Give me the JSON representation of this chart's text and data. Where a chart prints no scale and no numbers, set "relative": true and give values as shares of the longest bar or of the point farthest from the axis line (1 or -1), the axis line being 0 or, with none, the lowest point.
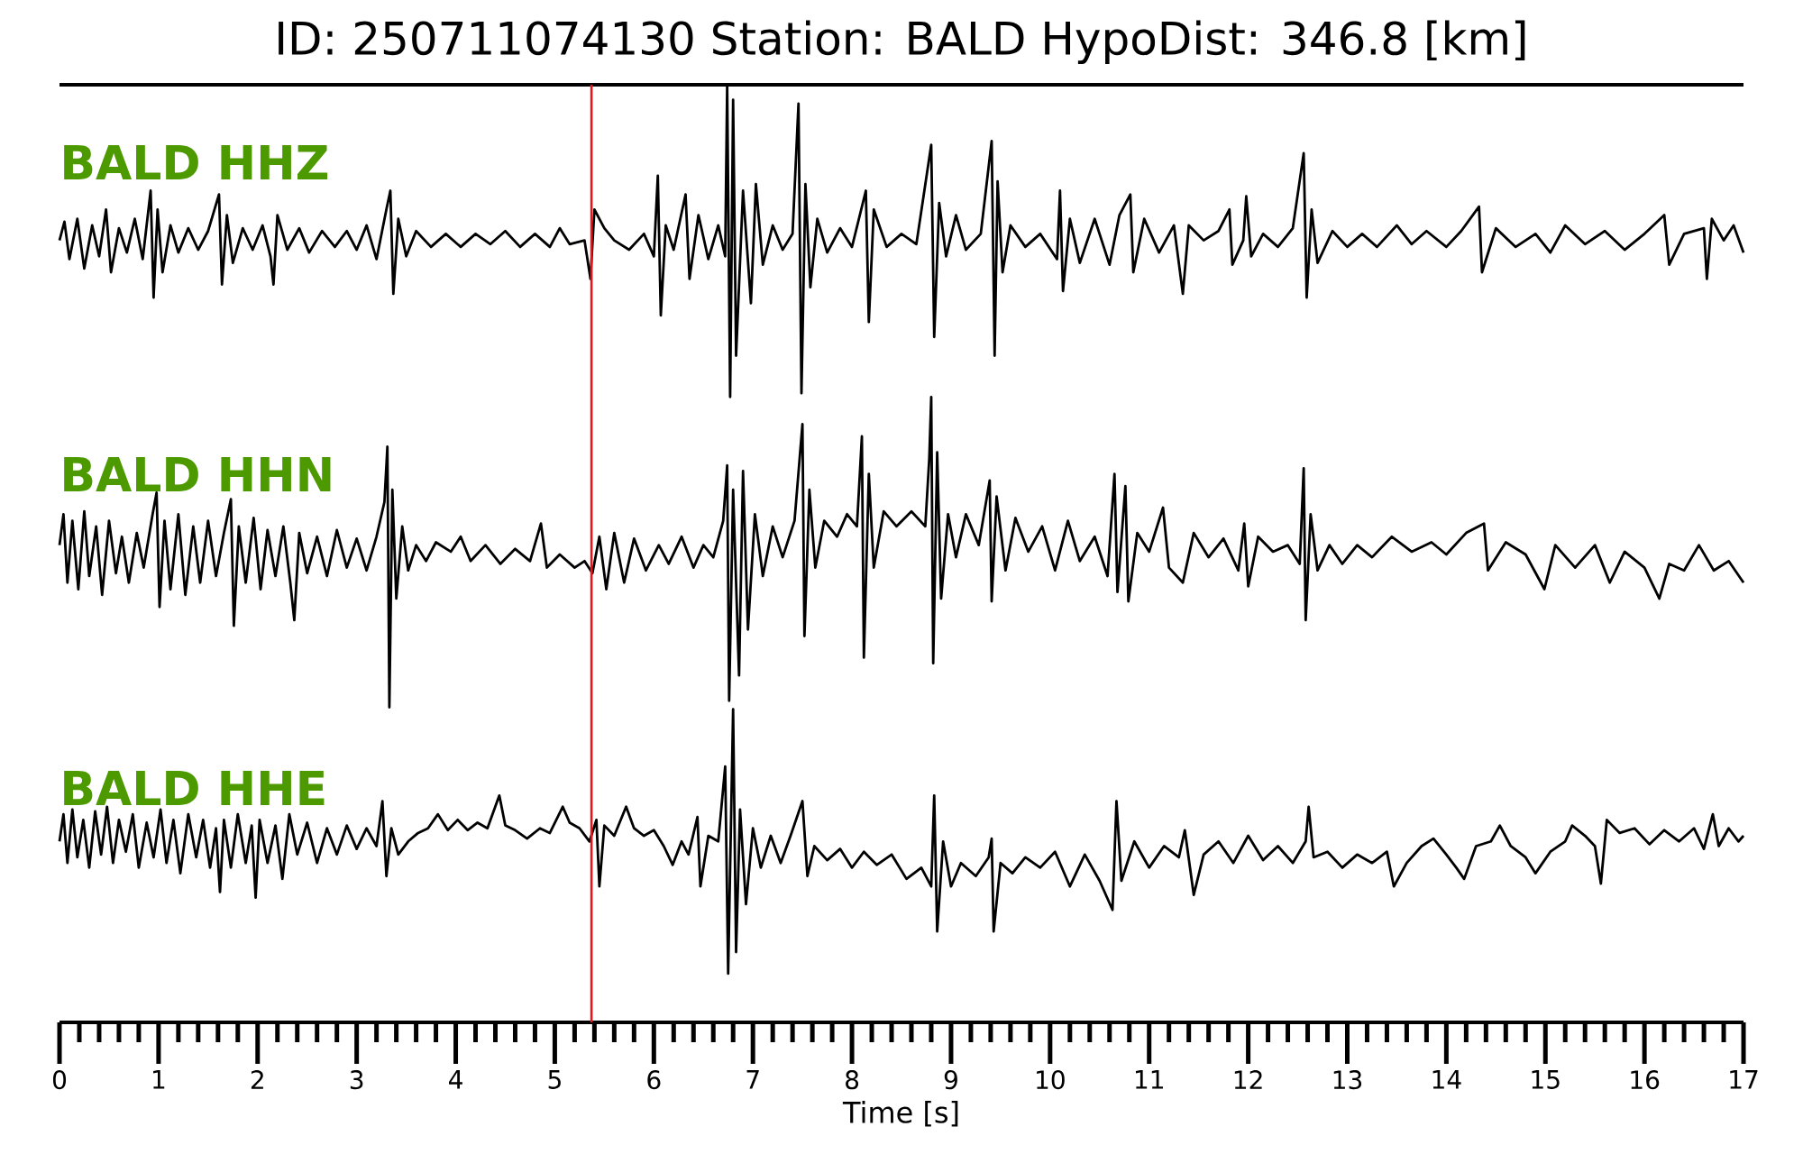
{
  "chart_data": {
    "type": "line",
    "title": "ID: 250711074130   Station: BALD   HypoDist:   346.8 [km]",
    "relative": true,
    "xlim": [
      0,
      17
    ],
    "xlabel": "Time [s]",
    "xticks": [
      0,
      {
        "value": 0.2,
        "label": null
      },
      {
        "value": 0.4,
        "label": null
      },
      {
        "value": 0.6,
        "label": null
      },
      {
        "value": 0.8,
        "label": null
      },
      1,
      {
        "value": 1.2,
        "label": null
      },
      {
        "value": 1.4,
        "label": null
      },
      {
        "value": 1.6,
        "label": null
      },
      {
        "value": 1.8,
        "label": null
      },
      2,
      {
        "value": 2.2,
        "label": null
      },
      {
        "value": 2.4,
        "label": null
      },
      {
        "value": 2.6,
        "label": null
      },
      {
        "value": 2.8,
        "label": null
      },
      3,
      {
        "value": 3.2,
        "label": null
      },
      {
        "value": 3.4,
        "label": null
      },
      {
        "value": 3.6,
        "label": null
      },
      {
        "value": 3.8,
        "label": null
      },
      4,
      {
        "value": 4.2,
        "label": null
      },
      {
        "value": 4.4,
        "label": null
      },
      {
        "value": 4.6,
        "label": null
      },
      {
        "value": 4.8,
        "label": null
      },
      5,
      {
        "value": 5.2,
        "label": null
      },
      {
        "value": 5.4,
        "label": null
      },
      {
        "value": 5.6,
        "label": null
      },
      {
        "value": 5.8,
        "label": null
      },
      6,
      {
        "value": 6.2,
        "label": null
      },
      {
        "value": 6.4,
        "label": null
      },
      {
        "value": 6.6,
        "label": null
      },
      {
        "value": 6.8,
        "label": null
      },
      7,
      {
        "value": 7.2,
        "label": null
      },
      {
        "value": 7.4,
        "label": null
      },
      {
        "value": 7.6,
        "label": null
      },
      {
        "value": 7.8,
        "label": null
      },
      8,
      {
        "value": 8.2,
        "label": null
      },
      {
        "value": 8.4,
        "label": null
      },
      {
        "value": 8.6,
        "label": null
      },
      {
        "value": 8.8,
        "label": null
      },
      9,
      {
        "value": 9.2,
        "label": null
      },
      {
        "value": 9.4,
        "label": null
      },
      {
        "value": 9.6,
        "label": null
      },
      {
        "value": 9.8,
        "label": null
      },
      10,
      {
        "value": 10.2,
        "label": null
      },
      {
        "value": 10.4,
        "label": null
      },
      {
        "value": 10.6,
        "label": null
      },
      {
        "value": 10.8,
        "label": null
      },
      11,
      {
        "value": 11.2,
        "label": null
      },
      {
        "value": 11.4,
        "label": null
      },
      {
        "value": 11.6,
        "label": null
      },
      {
        "value": 11.8,
        "label": null
      },
      12,
      {
        "value": 12.2,
        "label": null
      },
      {
        "value": 12.4,
        "label": null
      },
      {
        "value": 12.6,
        "label": null
      },
      {
        "value": 12.8,
        "label": null
      },
      13,
      {
        "value": 13.2,
        "label": null
      },
      {
        "value": 13.4,
        "label": null
      },
      {
        "value": 13.6,
        "label": null
      },
      {
        "value": 13.8,
        "label": null
      },
      14,
      {
        "value": 14.2,
        "label": null
      },
      {
        "value": 14.4,
        "label": null
      },
      {
        "value": 14.6,
        "label": null
      },
      {
        "value": 14.8,
        "label": null
      },
      15,
      {
        "value": 15.2,
        "label": null
      },
      {
        "value": 15.4,
        "label": null
      },
      {
        "value": 15.6,
        "label": null
      },
      {
        "value": 15.8,
        "label": null
      },
      16,
      {
        "value": 16.2,
        "label": null
      },
      {
        "value": 16.4,
        "label": null
      },
      {
        "value": 16.6,
        "label": null
      },
      {
        "value": 16.8,
        "label": null
      },
      17
    ],
    "ref_lines": [
      {
        "axis": "x",
        "value": 5.37,
        "color": "#e8161b"
      }
    ],
    "series": [
      {
        "name": "BALD HHZ",
        "color": "#000000",
        "x": [
          0,
          0.05,
          0.1,
          0.18,
          0.25,
          0.33,
          0.4,
          0.47,
          0.52,
          0.6,
          0.68,
          0.76,
          0.84,
          0.92,
          0.95,
          0.99,
          1.04,
          1.12,
          1.2,
          1.3,
          1.4,
          1.5,
          1.61,
          1.64,
          1.69,
          1.75,
          1.85,
          1.95,
          2.05,
          2.13,
          2.16,
          2.2,
          2.3,
          2.42,
          2.52,
          2.65,
          2.78,
          2.9,
          3,
          3.1,
          3.2,
          3.3,
          3.34,
          3.37,
          3.42,
          3.5,
          3.6,
          3.75,
          3.9,
          4.05,
          4.2,
          4.35,
          4.5,
          4.65,
          4.8,
          4.95,
          5.05,
          5.15,
          5.3,
          5.36,
          5.4,
          5.5,
          5.6,
          5.75,
          5.9,
          6,
          6.04,
          6.07,
          6.12,
          6.2,
          6.32,
          6.36,
          6.45,
          6.55,
          6.65,
          6.72,
          6.74,
          6.77,
          6.8,
          6.83,
          6.9,
          6.98,
          7.03,
          7.1,
          7.2,
          7.3,
          7.4,
          7.46,
          7.49,
          7.53,
          7.58,
          7.65,
          7.75,
          7.88,
          8,
          8.14,
          8.17,
          8.22,
          8.35,
          8.5,
          8.65,
          8.8,
          8.83,
          8.88,
          8.95,
          9.05,
          9.15,
          9.3,
          9.41,
          9.44,
          9.47,
          9.52,
          9.6,
          9.75,
          9.9,
          10.07,
          10.1,
          10.13,
          10.2,
          10.3,
          10.45,
          10.6,
          10.7,
          10.81,
          10.84,
          10.95,
          11.1,
          11.25,
          11.34,
          11.4,
          11.55,
          11.7,
          11.81,
          11.84,
          11.95,
          11.98,
          12.03,
          12.15,
          12.3,
          12.45,
          12.56,
          12.59,
          12.64,
          12.7,
          12.85,
          13,
          13.15,
          13.3,
          13.5,
          13.65,
          13.8,
          14,
          14.15,
          14.33,
          14.36,
          14.5,
          14.7,
          14.9,
          15.05,
          15.2,
          15.4,
          15.6,
          15.8,
          16,
          16.2,
          16.25,
          16.4,
          16.6,
          16.63,
          16.68,
          16.8,
          16.9,
          17
        ],
        "values": [
          0.834,
          0.854,
          0.814,
          0.857,
          0.804,
          0.85,
          0.817,
          0.867,
          0.8,
          0.847,
          0.821,
          0.857,
          0.814,
          0.887,
          0.773,
          0.867,
          0.8,
          0.85,
          0.821,
          0.847,
          0.824,
          0.844,
          0.883,
          0.787,
          0.861,
          0.81,
          0.847,
          0.824,
          0.85,
          0.817,
          0.787,
          0.861,
          0.824,
          0.847,
          0.821,
          0.844,
          0.827,
          0.844,
          0.824,
          0.85,
          0.814,
          0.867,
          0.887,
          0.777,
          0.857,
          0.817,
          0.844,
          0.827,
          0.841,
          0.827,
          0.841,
          0.83,
          0.844,
          0.827,
          0.841,
          0.827,
          0.847,
          0.83,
          0.834,
          0.793,
          0.867,
          0.847,
          0.834,
          0.824,
          0.841,
          0.817,
          0.903,
          0.754,
          0.85,
          0.824,
          0.883,
          0.793,
          0.861,
          0.814,
          0.85,
          0.817,
          1,
          0.667,
          0.984,
          0.711,
          0.887,
          0.767,
          0.894,
          0.808,
          0.85,
          0.824,
          0.841,
          0.98,
          0.671,
          0.894,
          0.784,
          0.857,
          0.821,
          0.847,
          0.827,
          0.887,
          0.747,
          0.867,
          0.827,
          0.841,
          0.83,
          0.936,
          0.731,
          0.874,
          0.817,
          0.861,
          0.824,
          0.841,
          0.94,
          0.711,
          0.897,
          0.8,
          0.85,
          0.827,
          0.841,
          0.814,
          0.887,
          0.78,
          0.857,
          0.81,
          0.857,
          0.808,
          0.861,
          0.883,
          0.8,
          0.857,
          0.821,
          0.85,
          0.777,
          0.85,
          0.834,
          0.844,
          0.867,
          0.808,
          0.834,
          0.881,
          0.817,
          0.841,
          0.827,
          0.847,
          0.927,
          0.773,
          0.867,
          0.81,
          0.844,
          0.827,
          0.841,
          0.827,
          0.85,
          0.83,
          0.844,
          0.827,
          0.844,
          0.87,
          0.8,
          0.847,
          0.827,
          0.841,
          0.821,
          0.85,
          0.83,
          0.844,
          0.824,
          0.841,
          0.861,
          0.808,
          0.841,
          0.847,
          0.793,
          0.857,
          0.834,
          0.85,
          0.821
        ]
      },
      {
        "name": "BALD HHN",
        "color": "#000000",
        "x": [
          0,
          0.04,
          0.08,
          0.13,
          0.19,
          0.25,
          0.3,
          0.37,
          0.43,
          0.5,
          0.57,
          0.63,
          0.7,
          0.78,
          0.85,
          0.94,
          0.98,
          1.01,
          1.06,
          1.12,
          1.2,
          1.27,
          1.35,
          1.42,
          1.5,
          1.58,
          1.66,
          1.73,
          1.76,
          1.81,
          1.88,
          1.96,
          2.03,
          2.1,
          2.18,
          2.26,
          2.33,
          2.37,
          2.42,
          2.5,
          2.6,
          2.7,
          2.8,
          2.9,
          3,
          3.1,
          3.2,
          3.28,
          3.31,
          3.33,
          3.36,
          3.4,
          3.46,
          3.52,
          3.6,
          3.7,
          3.8,
          3.95,
          4.05,
          4.15,
          4.3,
          4.45,
          4.6,
          4.75,
          4.86,
          4.92,
          5.05,
          5.2,
          5.3,
          5.38,
          5.45,
          5.52,
          5.6,
          5.7,
          5.8,
          5.92,
          6.05,
          6.15,
          6.28,
          6.4,
          6.5,
          6.6,
          6.7,
          6.74,
          6.76,
          6.8,
          6.86,
          6.9,
          6.95,
          7.02,
          7.1,
          7.2,
          7.3,
          7.42,
          7.5,
          7.52,
          7.57,
          7.63,
          7.72,
          7.85,
          7.95,
          8.05,
          8.1,
          8.12,
          8.17,
          8.22,
          8.32,
          8.45,
          8.6,
          8.74,
          8.78,
          8.8,
          8.82,
          8.86,
          8.9,
          8.97,
          9.05,
          9.15,
          9.28,
          9.39,
          9.41,
          9.46,
          9.55,
          9.65,
          9.78,
          9.92,
          10.05,
          10.18,
          10.3,
          10.45,
          10.58,
          10.65,
          10.68,
          10.76,
          10.79,
          10.88,
          11,
          11.14,
          11.2,
          11.34,
          11.45,
          11.6,
          11.75,
          11.9,
          11.96,
          12,
          12.1,
          12.25,
          12.4,
          12.52,
          12.56,
          12.58,
          12.63,
          12.7,
          12.82,
          12.95,
          13.1,
          13.25,
          13.45,
          13.65,
          13.85,
          14,
          14.2,
          14.38,
          14.42,
          14.6,
          14.8,
          14.99,
          15.1,
          15.3,
          15.5,
          15.65,
          15.8,
          16,
          16.15,
          16.25,
          16.4,
          16.55,
          16.7,
          16.85,
          17
        ],
        "values": [
          0.509,
          0.542,
          0.469,
          0.535,
          0.462,
          0.545,
          0.476,
          0.529,
          0.456,
          0.535,
          0.479,
          0.518,
          0.469,
          0.522,
          0.485,
          0.542,
          0.565,
          0.443,
          0.535,
          0.462,
          0.542,
          0.456,
          0.529,
          0.469,
          0.535,
          0.476,
          0.522,
          0.558,
          0.423,
          0.529,
          0.469,
          0.538,
          0.462,
          0.525,
          0.476,
          0.529,
          0.469,
          0.429,
          0.522,
          0.479,
          0.518,
          0.476,
          0.525,
          0.485,
          0.516,
          0.482,
          0.518,
          0.555,
          0.614,
          0.336,
          0.568,
          0.452,
          0.529,
          0.482,
          0.509,
          0.492,
          0.512,
          0.502,
          0.518,
          0.492,
          0.509,
          0.489,
          0.505,
          0.492,
          0.532,
          0.485,
          0.499,
          0.485,
          0.492,
          0.479,
          0.518,
          0.462,
          0.522,
          0.469,
          0.516,
          0.482,
          0.509,
          0.489,
          0.518,
          0.485,
          0.509,
          0.496,
          0.535,
          0.594,
          0.343,
          0.568,
          0.37,
          0.588,
          0.419,
          0.542,
          0.476,
          0.529,
          0.496,
          0.535,
          0.638,
          0.412,
          0.568,
          0.485,
          0.535,
          0.518,
          0.542,
          0.529,
          0.625,
          0.389,
          0.585,
          0.485,
          0.545,
          0.529,
          0.545,
          0.529,
          0.601,
          0.667,
          0.383,
          0.608,
          0.452,
          0.542,
          0.496,
          0.542,
          0.509,
          0.578,
          0.449,
          0.561,
          0.482,
          0.538,
          0.502,
          0.529,
          0.482,
          0.535,
          0.492,
          0.518,
          0.476,
          0.585,
          0.459,
          0.572,
          0.449,
          0.522,
          0.502,
          0.549,
          0.485,
          0.469,
          0.522,
          0.496,
          0.516,
          0.482,
          0.532,
          0.465,
          0.518,
          0.502,
          0.509,
          0.489,
          0.591,
          0.429,
          0.542,
          0.482,
          0.509,
          0.489,
          0.509,
          0.496,
          0.518,
          0.502,
          0.512,
          0.499,
          0.522,
          0.532,
          0.482,
          0.512,
          0.499,
          0.462,
          0.509,
          0.485,
          0.509,
          0.469,
          0.502,
          0.485,
          0.452,
          0.489,
          0.482,
          0.509,
          0.482,
          0.492,
          0.469
        ]
      },
      {
        "name": "BALD HHE",
        "color": "#000000",
        "x": [
          0,
          0.04,
          0.08,
          0.13,
          0.18,
          0.24,
          0.3,
          0.36,
          0.42,
          0.48,
          0.54,
          0.6,
          0.67,
          0.74,
          0.8,
          0.88,
          0.95,
          1.02,
          1.08,
          1.15,
          1.22,
          1.3,
          1.38,
          1.45,
          1.52,
          1.58,
          1.62,
          1.66,
          1.73,
          1.8,
          1.88,
          1.94,
          1.98,
          2.02,
          2.1,
          2.18,
          2.25,
          2.32,
          2.4,
          2.5,
          2.6,
          2.7,
          2.8,
          2.9,
          3,
          3.1,
          3.2,
          3.26,
          3.3,
          3.35,
          3.42,
          3.52,
          3.62,
          3.72,
          3.82,
          3.92,
          4.02,
          4.12,
          4.22,
          4.32,
          4.44,
          4.5,
          4.6,
          4.72,
          4.85,
          4.95,
          5.08,
          5.15,
          5.25,
          5.35,
          5.42,
          5.45,
          5.5,
          5.6,
          5.72,
          5.8,
          5.9,
          6,
          6.1,
          6.19,
          6.28,
          6.35,
          6.44,
          6.47,
          6.55,
          6.65,
          6.72,
          6.75,
          6.8,
          6.83,
          6.87,
          6.93,
          7,
          7.08,
          7.18,
          7.28,
          7.38,
          7.5,
          7.55,
          7.62,
          7.75,
          7.88,
          8,
          8.12,
          8.25,
          8.4,
          8.55,
          8.7,
          8.8,
          8.83,
          8.86,
          8.92,
          9,
          9.1,
          9.25,
          9.38,
          9.41,
          9.43,
          9.5,
          9.62,
          9.75,
          9.9,
          10.05,
          10.2,
          10.35,
          10.5,
          10.63,
          10.67,
          10.72,
          10.85,
          11,
          11.15,
          11.3,
          11.36,
          11.45,
          11.55,
          11.7,
          11.85,
          12,
          12.15,
          12.3,
          12.45,
          12.58,
          12.61,
          12.66,
          12.8,
          12.95,
          13.1,
          13.25,
          13.4,
          13.47,
          13.6,
          13.75,
          13.87,
          14,
          14.1,
          14.18,
          14.3,
          14.45,
          14.54,
          14.65,
          14.8,
          14.9,
          15.05,
          15.2,
          15.27,
          15.4,
          15.5,
          15.56,
          15.62,
          15.75,
          15.9,
          16.05,
          16.2,
          16.35,
          16.5,
          16.6,
          16.69,
          16.75,
          16.85,
          16.95,
          17
        ],
        "values": [
          0.193,
          0.222,
          0.17,
          0.227,
          0.176,
          0.216,
          0.165,
          0.225,
          0.179,
          0.23,
          0.17,
          0.216,
          0.182,
          0.222,
          0.165,
          0.213,
          0.176,
          0.227,
          0.17,
          0.216,
          0.159,
          0.222,
          0.176,
          0.216,
          0.165,
          0.207,
          0.139,
          0.216,
          0.165,
          0.222,
          0.17,
          0.21,
          0.133,
          0.216,
          0.17,
          0.21,
          0.153,
          0.222,
          0.179,
          0.213,
          0.17,
          0.207,
          0.179,
          0.21,
          0.185,
          0.207,
          0.188,
          0.236,
          0.156,
          0.207,
          0.179,
          0.193,
          0.202,
          0.207,
          0.222,
          0.205,
          0.216,
          0.205,
          0.213,
          0.207,
          0.242,
          0.21,
          0.205,
          0.196,
          0.207,
          0.202,
          0.23,
          0.213,
          0.207,
          0.193,
          0.216,
          0.145,
          0.21,
          0.199,
          0.23,
          0.207,
          0.199,
          0.205,
          0.188,
          0.168,
          0.193,
          0.179,
          0.219,
          0.145,
          0.199,
          0.193,
          0.273,
          0.052,
          0.334,
          0.075,
          0.227,
          0.126,
          0.207,
          0.165,
          0.199,
          0.17,
          0.199,
          0.236,
          0.156,
          0.188,
          0.173,
          0.185,
          0.165,
          0.182,
          0.168,
          0.179,
          0.153,
          0.165,
          0.145,
          0.242,
          0.097,
          0.193,
          0.145,
          0.17,
          0.156,
          0.176,
          0.196,
          0.097,
          0.17,
          0.159,
          0.176,
          0.165,
          0.182,
          0.145,
          0.179,
          0.151,
          0.12,
          0.236,
          0.151,
          0.193,
          0.165,
          0.188,
          0.176,
          0.205,
          0.136,
          0.179,
          0.193,
          0.17,
          0.199,
          0.173,
          0.188,
          0.17,
          0.193,
          0.23,
          0.176,
          0.182,
          0.165,
          0.179,
          0.17,
          0.182,
          0.145,
          0.17,
          0.188,
          0.196,
          0.179,
          0.165,
          0.153,
          0.188,
          0.193,
          0.21,
          0.188,
          0.176,
          0.159,
          0.182,
          0.193,
          0.21,
          0.199,
          0.188,
          0.148,
          0.216,
          0.202,
          0.207,
          0.19,
          0.205,
          0.193,
          0.207,
          0.185,
          0.222,
          0.188,
          0.207,
          0.193,
          0.199
        ]
      }
    ]
  }
}
